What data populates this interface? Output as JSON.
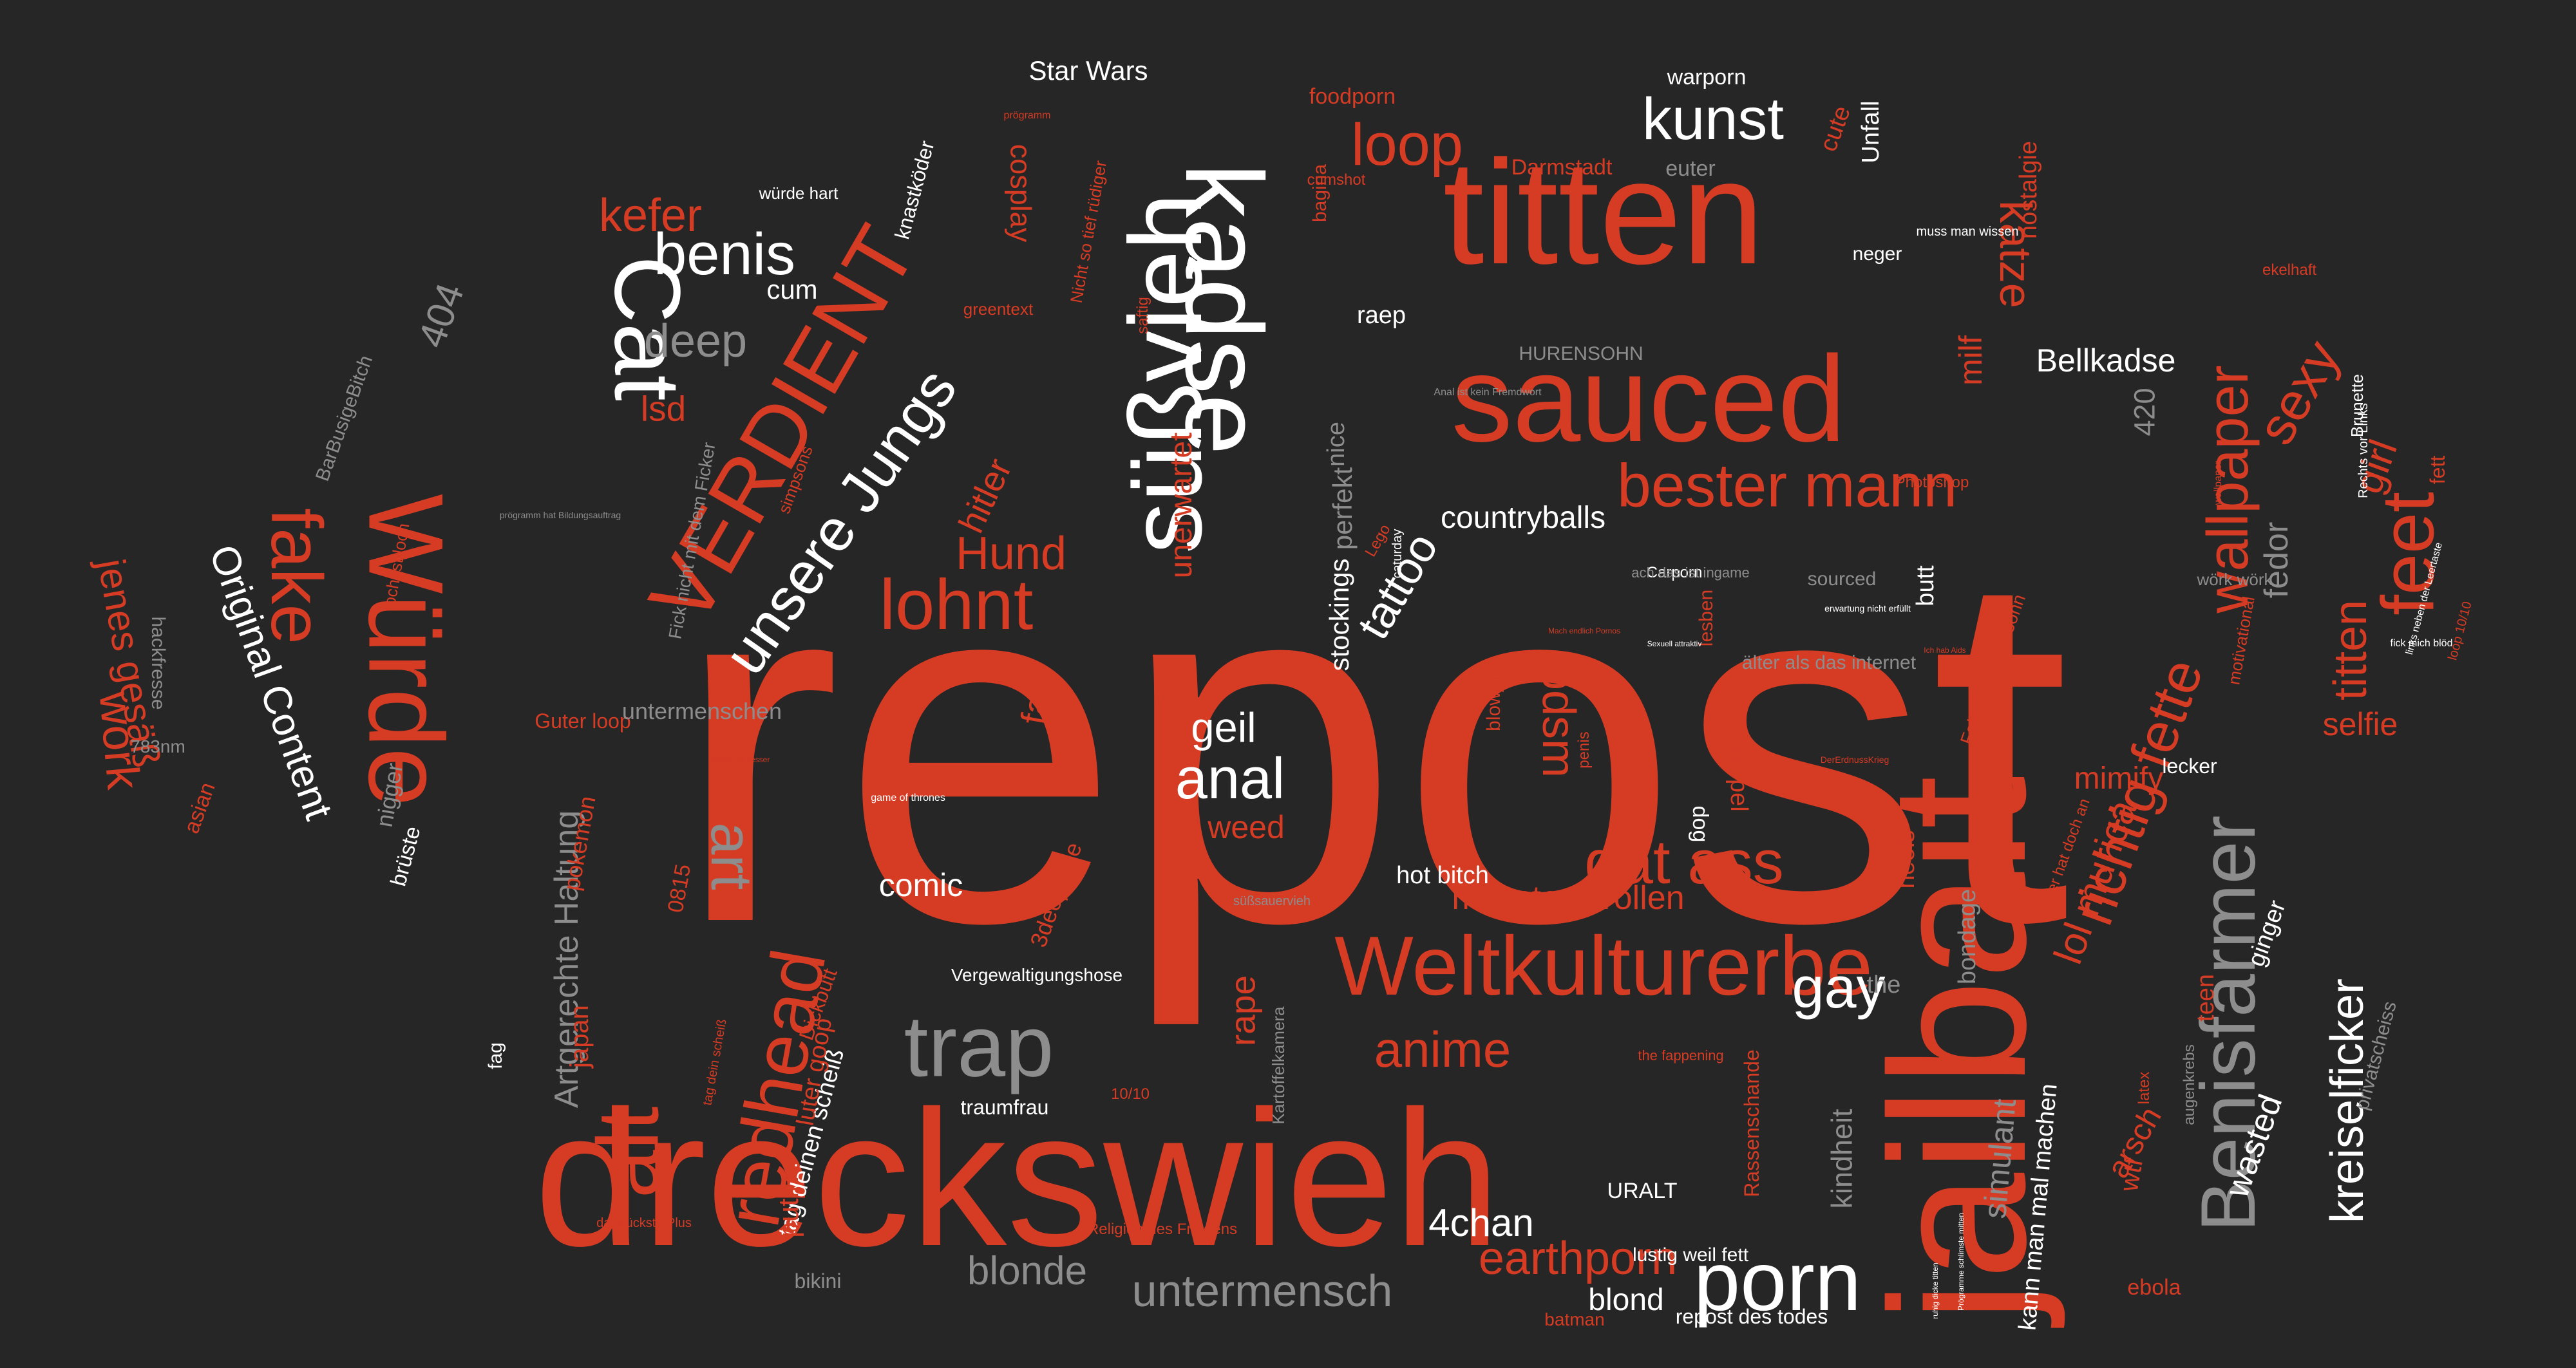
{
  "colors": {
    "background": "#262626",
    "red": "#d63b24",
    "white": "#ffffff",
    "gray": "#8d8d8d"
  },
  "words": [
    {
      "text": "repost",
      "color": "red"
    },
    {
      "text": "dreckswieh",
      "color": "red"
    },
    {
      "text": "jailbait",
      "color": "red"
    },
    {
      "text": "titten",
      "color": "red"
    },
    {
      "text": "kadse",
      "color": "white"
    },
    {
      "text": "sauced",
      "color": "red"
    },
    {
      "text": "süßvieh",
      "color": "white"
    },
    {
      "text": "Würde",
      "color": "red"
    },
    {
      "text": "Cat",
      "color": "white"
    },
    {
      "text": "VERDIENT",
      "color": "red"
    },
    {
      "text": "Weltkulturerbe",
      "color": "red"
    },
    {
      "text": "trap",
      "color": "gray"
    },
    {
      "text": "Benisfarmer",
      "color": "gray"
    },
    {
      "text": "unsere Jungs",
      "color": "white"
    },
    {
      "text": "lohnt",
      "color": "red"
    },
    {
      "text": "fake",
      "color": "red"
    },
    {
      "text": "Original Content",
      "color": "white"
    },
    {
      "text": "redhead",
      "color": "red"
    },
    {
      "text": "alt",
      "color": "red"
    },
    {
      "text": "porn",
      "color": "white"
    },
    {
      "text": "bester mann",
      "color": "red"
    },
    {
      "text": "richtig fette",
      "color": "red"
    },
    {
      "text": "feet",
      "color": "red"
    },
    {
      "text": "wallpaper",
      "color": "red"
    },
    {
      "text": "kunst",
      "color": "white"
    },
    {
      "text": "benis",
      "color": "white"
    },
    {
      "text": "loop",
      "color": "red"
    },
    {
      "text": "dat ass",
      "color": "red"
    },
    {
      "text": "anime",
      "color": "red"
    },
    {
      "text": "earthporn",
      "color": "red"
    },
    {
      "text": "untermensch",
      "color": "gray"
    },
    {
      "text": "gay",
      "color": "white"
    },
    {
      "text": "art",
      "color": "gray"
    },
    {
      "text": "anal",
      "color": "white"
    },
    {
      "text": "geil",
      "color": "white"
    },
    {
      "text": "jenes gesäß",
      "color": "red"
    },
    {
      "text": "work",
      "color": "red"
    },
    {
      "text": "kreiselficker",
      "color": "white"
    },
    {
      "text": "Hund",
      "color": "red"
    },
    {
      "text": "blonde",
      "color": "gray"
    },
    {
      "text": "deep",
      "color": "gray"
    },
    {
      "text": "kefer",
      "color": "red"
    },
    {
      "text": "katze",
      "color": "red"
    },
    {
      "text": "lol murica",
      "color": "red"
    },
    {
      "text": "Artgerechte Haltung",
      "color": "gray"
    },
    {
      "text": "tattoo",
      "color": "white"
    },
    {
      "text": "musste scrollen",
      "color": "red"
    },
    {
      "text": "404",
      "color": "gray"
    },
    {
      "text": "4chan",
      "color": "white"
    },
    {
      "text": "bdsm",
      "color": "red"
    },
    {
      "text": "titten",
      "color": "red"
    },
    {
      "text": "sexy",
      "color": "red"
    },
    {
      "text": "girl",
      "color": "red"
    },
    {
      "text": "Bellkadse",
      "color": "white"
    },
    {
      "text": "blond",
      "color": "white"
    },
    {
      "text": "wasted",
      "color": "white"
    },
    {
      "text": "Star Wars",
      "color": "white"
    },
    {
      "text": "comic",
      "color": "white"
    },
    {
      "text": "lsd",
      "color": "red"
    },
    {
      "text": "cosplay",
      "color": "red"
    },
    {
      "text": "hitler",
      "color": "red"
    },
    {
      "text": "fail",
      "color": "red"
    },
    {
      "text": "rape",
      "color": "red"
    },
    {
      "text": "weed",
      "color": "red"
    },
    {
      "text": "mimify",
      "color": "red"
    },
    {
      "text": "selfie",
      "color": "red"
    },
    {
      "text": "milf",
      "color": "red"
    },
    {
      "text": "fedor",
      "color": "gray"
    },
    {
      "text": "tag deinen scheiß",
      "color": "white"
    },
    {
      "text": "kann man mal machen",
      "color": "white"
    },
    {
      "text": "unerwartet",
      "color": "red"
    },
    {
      "text": "countryballs",
      "color": "white"
    },
    {
      "text": "perfekt",
      "color": "gray"
    },
    {
      "text": "cum",
      "color": "white"
    },
    {
      "text": "kindheit",
      "color": "gray"
    },
    {
      "text": "simulant",
      "color": "gray"
    },
    {
      "text": "arsch",
      "color": "red"
    },
    {
      "text": "Vergewaltigungshose",
      "color": "white"
    },
    {
      "text": "traumfrau",
      "color": "white"
    },
    {
      "text": "Unfall",
      "color": "white"
    },
    {
      "text": "butt",
      "color": "white"
    },
    {
      "text": "nostalgie",
      "color": "red"
    },
    {
      "text": "420",
      "color": "gray"
    },
    {
      "text": "cute",
      "color": "red"
    },
    {
      "text": "japan",
      "color": "red"
    },
    {
      "text": "pokemon",
      "color": "red"
    },
    {
      "text": "nigger",
      "color": "gray"
    },
    {
      "text": "brüste",
      "color": "white"
    },
    {
      "text": "hot bitch",
      "color": "white"
    },
    {
      "text": "putin",
      "color": "red"
    },
    {
      "text": "stockings",
      "color": "white"
    },
    {
      "text": "nice",
      "color": "gray"
    },
    {
      "text": "raep",
      "color": "white"
    },
    {
      "text": "teen",
      "color": "red"
    },
    {
      "text": "ginger",
      "color": "white"
    },
    {
      "text": "wtf",
      "color": "red"
    },
    {
      "text": "ebola",
      "color": "red"
    },
    {
      "text": "Guter loop",
      "color": "red"
    },
    {
      "text": "untermenschen",
      "color": "gray"
    },
    {
      "text": "warporn",
      "color": "white"
    },
    {
      "text": "Darmstadt",
      "color": "red"
    },
    {
      "text": "euter",
      "color": "gray"
    },
    {
      "text": "neger",
      "color": "white"
    },
    {
      "text": "hackfresse",
      "color": "gray"
    },
    {
      "text": "783nm",
      "color": "gray"
    },
    {
      "text": "asian",
      "color": "red"
    },
    {
      "text": "lecker",
      "color": "white"
    },
    {
      "text": "fett",
      "color": "red"
    },
    {
      "text": "bikini",
      "color": "gray"
    },
    {
      "text": "lustig weil fett",
      "color": "white"
    },
    {
      "text": "batman",
      "color": "red"
    },
    {
      "text": "repost des todes",
      "color": "white"
    },
    {
      "text": "nippel",
      "color": "red"
    },
    {
      "text": "dog",
      "color": "white"
    },
    {
      "text": "heels",
      "color": "red"
    },
    {
      "text": "bondage",
      "color": "gray"
    },
    {
      "text": "the",
      "color": "gray"
    },
    {
      "text": "foodporn",
      "color": "red"
    },
    {
      "text": "knastköder",
      "color": "white"
    },
    {
      "text": "würde hart",
      "color": "white"
    },
    {
      "text": "greentext",
      "color": "red"
    },
    {
      "text": "simpsons",
      "color": "red"
    },
    {
      "text": "Fick nicht mit dem Ficker",
      "color": "gray"
    },
    {
      "text": "BarBusigeBitch",
      "color": "gray"
    },
    {
      "text": "loch ist loch",
      "color": "red"
    },
    {
      "text": "HURENSOHN",
      "color": "gray"
    },
    {
      "text": "saftig",
      "color": "red"
    },
    {
      "text": "bagina",
      "color": "red"
    },
    {
      "text": "cumshot",
      "color": "red"
    },
    {
      "text": "Nicht so tief rüdiger",
      "color": "red"
    },
    {
      "text": "ekelhaft",
      "color": "red"
    },
    {
      "text": "Brunette",
      "color": "white"
    },
    {
      "text": "Photoshop",
      "color": "red"
    },
    {
      "text": "Lego",
      "color": "red"
    },
    {
      "text": "blowjob",
      "color": "red"
    },
    {
      "text": "penis",
      "color": "red"
    },
    {
      "text": "lesben",
      "color": "red"
    },
    {
      "text": "älter als das internet",
      "color": "gray"
    },
    {
      "text": "sourced",
      "color": "gray"
    },
    {
      "text": "Falk der Hurensohn",
      "color": "red"
    },
    {
      "text": "wörk wörk",
      "color": "gray"
    },
    {
      "text": "motivational",
      "color": "red"
    },
    {
      "text": "luter goop",
      "color": "red"
    },
    {
      "text": "3deep5me",
      "color": "red"
    },
    {
      "text": "0815",
      "color": "red"
    },
    {
      "text": "Dickbutt",
      "color": "red"
    },
    {
      "text": "fag",
      "color": "white"
    },
    {
      "text": "latex",
      "color": "red"
    },
    {
      "text": "augenkrebs",
      "color": "gray"
    },
    {
      "text": "privatscheiss",
      "color": "gray"
    },
    {
      "text": "Rassenschande",
      "color": "red"
    },
    {
      "text": "URALT",
      "color": "white"
    },
    {
      "text": "10/10",
      "color": "red"
    },
    {
      "text": "Kartoffelkamera",
      "color": "gray"
    },
    {
      "text": "Carporn",
      "color": "white"
    },
    {
      "text": "ach das ist ingame",
      "color": "gray"
    },
    {
      "text": "caturday",
      "color": "white"
    },
    {
      "text": "loop 10/10",
      "color": "red"
    },
    {
      "text": "tag dein scheiß",
      "color": "red"
    },
    {
      "text": "Religion des Friedens",
      "color": "red"
    },
    {
      "text": "der hat doch an",
      "color": "red"
    },
    {
      "text": "the fappening",
      "color": "red"
    },
    {
      "text": "da drückste Plus",
      "color": "red"
    },
    {
      "text": "süßsauervieh",
      "color": "gray"
    },
    {
      "text": "muss man wissen",
      "color": "white"
    },
    {
      "text": "prögramm",
      "color": "red"
    },
    {
      "text": "Anal ist kein Fremdwort",
      "color": "gray"
    },
    {
      "text": "Rechts vor Links",
      "color": "white"
    },
    {
      "text": "game of thrones",
      "color": "white"
    },
    {
      "text": "prögramm hat Bildungsauftrag",
      "color": "gray"
    },
    {
      "text": "wallpaper",
      "color": "red"
    },
    {
      "text": "links neben der Leertaste",
      "color": "white"
    },
    {
      "text": "fick mich blöd",
      "color": "white"
    },
    {
      "text": "DerErdnussKrieg",
      "color": "red"
    },
    {
      "text": "erwartung nicht erfüllt",
      "color": "white"
    },
    {
      "text": "ruhig dicke titten",
      "color": "white"
    },
    {
      "text": "Prögramme schlimste mitten",
      "color": "white"
    },
    {
      "text": "Sexuell attraktiv",
      "color": "white"
    },
    {
      "text": "Mach endlich Pornos",
      "color": "red"
    },
    {
      "text": "Ich hab Aids",
      "color": "red"
    },
    {
      "text": "besser ist besser",
      "color": "red"
    },
    {
      "text": "erwartungen nicht erfüllt",
      "color": "gray"
    },
    {
      "text": "kreative kommentare",
      "color": "red"
    },
    {
      "text": "nicht so tief",
      "color": "red"
    },
    {
      "text": "Bildungsauftrag",
      "color": "gray"
    }
  ]
}
